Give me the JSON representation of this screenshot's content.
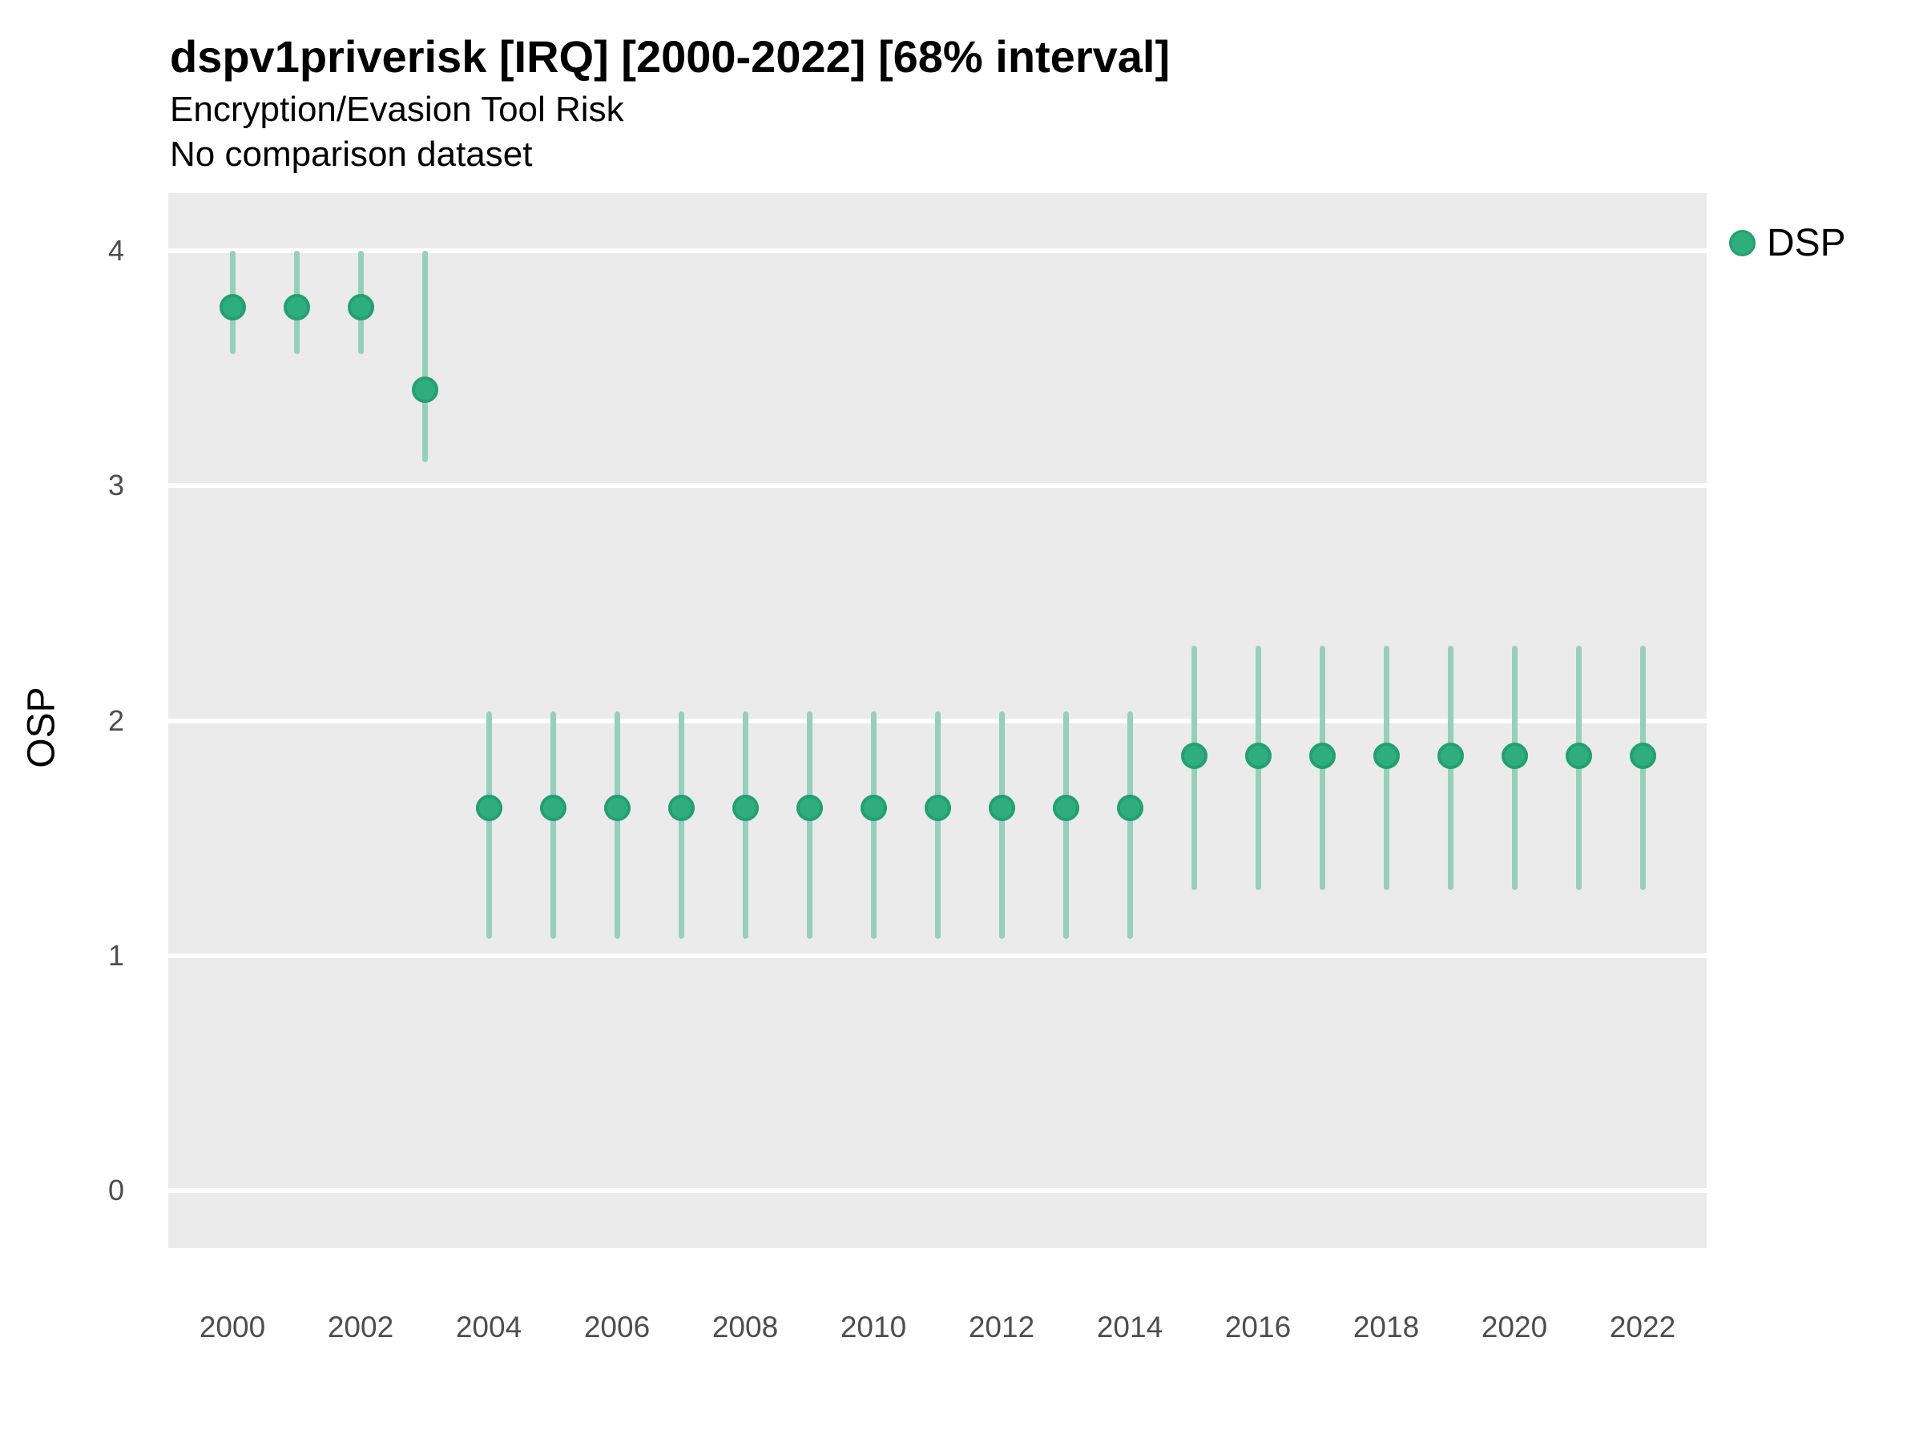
{
  "header": {
    "title": "dspv1priverisk [IRQ] [2000-2022] [68% interval]",
    "subtitle": "Encryption/Evasion Tool Risk",
    "note": "No comparison dataset"
  },
  "legend": {
    "position": "right",
    "items": [
      {
        "label": "DSP",
        "color": "#2FAE7D"
      }
    ]
  },
  "axes": {
    "y_title": "OSP",
    "y_ticks": [
      4,
      3,
      2,
      1,
      0
    ],
    "x_ticks": [
      2000,
      2002,
      2004,
      2006,
      2008,
      2010,
      2012,
      2014,
      2016,
      2018,
      2020,
      2022
    ]
  },
  "chart_data": {
    "type": "pointrange",
    "title": "dspv1priverisk [IRQ] [2000-2022] [68% interval]",
    "subtitle": "Encryption/Evasion Tool Risk",
    "note": "No comparison dataset",
    "xlabel": "",
    "ylabel": "OSP",
    "xlim": [
      1999,
      2023
    ],
    "ylim": [
      -0.25,
      4.25
    ],
    "grid": "major-horizontal-white-on-grey-panel",
    "legend_position": "right",
    "interval_label": "68% interval",
    "series": [
      {
        "name": "DSP",
        "x": [
          2000,
          2001,
          2002,
          2003,
          2004,
          2005,
          2006,
          2007,
          2008,
          2009,
          2010,
          2011,
          2012,
          2013,
          2014,
          2015,
          2016,
          2017,
          2018,
          2019,
          2020,
          2021,
          2022
        ],
        "mid": [
          3.76,
          3.76,
          3.76,
          3.41,
          1.63,
          1.63,
          1.63,
          1.63,
          1.63,
          1.63,
          1.63,
          1.63,
          1.63,
          1.63,
          1.63,
          1.85,
          1.85,
          1.85,
          1.85,
          1.85,
          1.85,
          1.85,
          1.85
        ],
        "lo": [
          3.56,
          3.56,
          3.56,
          3.1,
          1.07,
          1.07,
          1.07,
          1.07,
          1.07,
          1.07,
          1.07,
          1.07,
          1.07,
          1.07,
          1.07,
          1.28,
          1.28,
          1.28,
          1.28,
          1.28,
          1.28,
          1.28,
          1.28
        ],
        "hi": [
          4.0,
          4.0,
          4.0,
          4.0,
          2.04,
          2.04,
          2.04,
          2.04,
          2.04,
          2.04,
          2.04,
          2.04,
          2.04,
          2.04,
          2.04,
          2.32,
          2.32,
          2.32,
          2.32,
          2.32,
          2.32,
          2.32,
          2.32
        ]
      }
    ],
    "colors": {
      "point_fill": "#2FAE7D",
      "point_ring": "#23A06E",
      "interval_line": "#96CFBA",
      "panel_background": "#EBEBEB",
      "gridline": "#FFFFFF",
      "axis_text": "#4D4D4D"
    }
  }
}
